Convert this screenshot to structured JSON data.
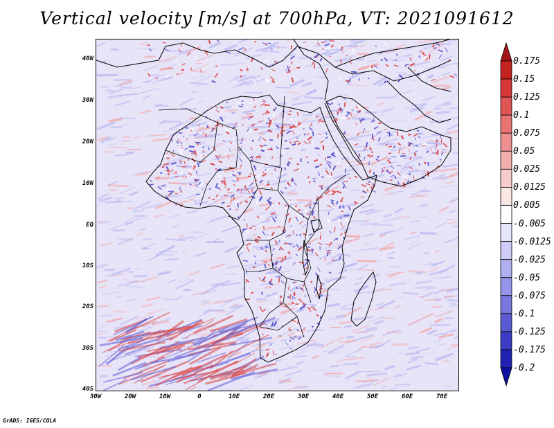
{
  "title": "Vertical velocity [m/s] at 700hPa, VT: 2021091612",
  "credit": "GrADS: IGES/COLA",
  "latitude_labels": [
    "40N",
    "30N",
    "20N",
    "10N",
    "EQ",
    "10S",
    "20S",
    "30S",
    "40S"
  ],
  "longitude_labels": [
    "30W",
    "20W",
    "10W",
    "0",
    "10E",
    "20E",
    "30E",
    "40E",
    "50E",
    "60E",
    "70E"
  ],
  "map_extent": {
    "lon_min": -30,
    "lon_max": 75,
    "lat_min": -40,
    "lat_max": 44
  },
  "colorbar": {
    "labels": [
      "0.175",
      "0.15",
      "0.125",
      "0.1",
      "0.075",
      "0.05",
      "0.025",
      "0.0125",
      "0.005",
      "-0.005",
      "-0.0125",
      "-0.025",
      "-0.05",
      "-0.075",
      "-0.1",
      "-0.125",
      "-0.175",
      "-0.2"
    ],
    "colors": [
      "#a31515",
      "#c42121",
      "#d63838",
      "#e05555",
      "#e87373",
      "#ee9090",
      "#f3aeae",
      "#f8cccc",
      "#fbe6e6",
      "#ffffff",
      "#e6e6fb",
      "#ccccf6",
      "#b0b0ef",
      "#9494e8",
      "#7777de",
      "#5a5ad2",
      "#3c3cc4",
      "#2222b2",
      "#1010a0"
    ]
  },
  "field_colors": {
    "land_red": "#d94a4a",
    "land_blue": "#5555cc",
    "ocean_blue": "#b8b8f0",
    "ocean_red": "#f0a8a8"
  }
}
